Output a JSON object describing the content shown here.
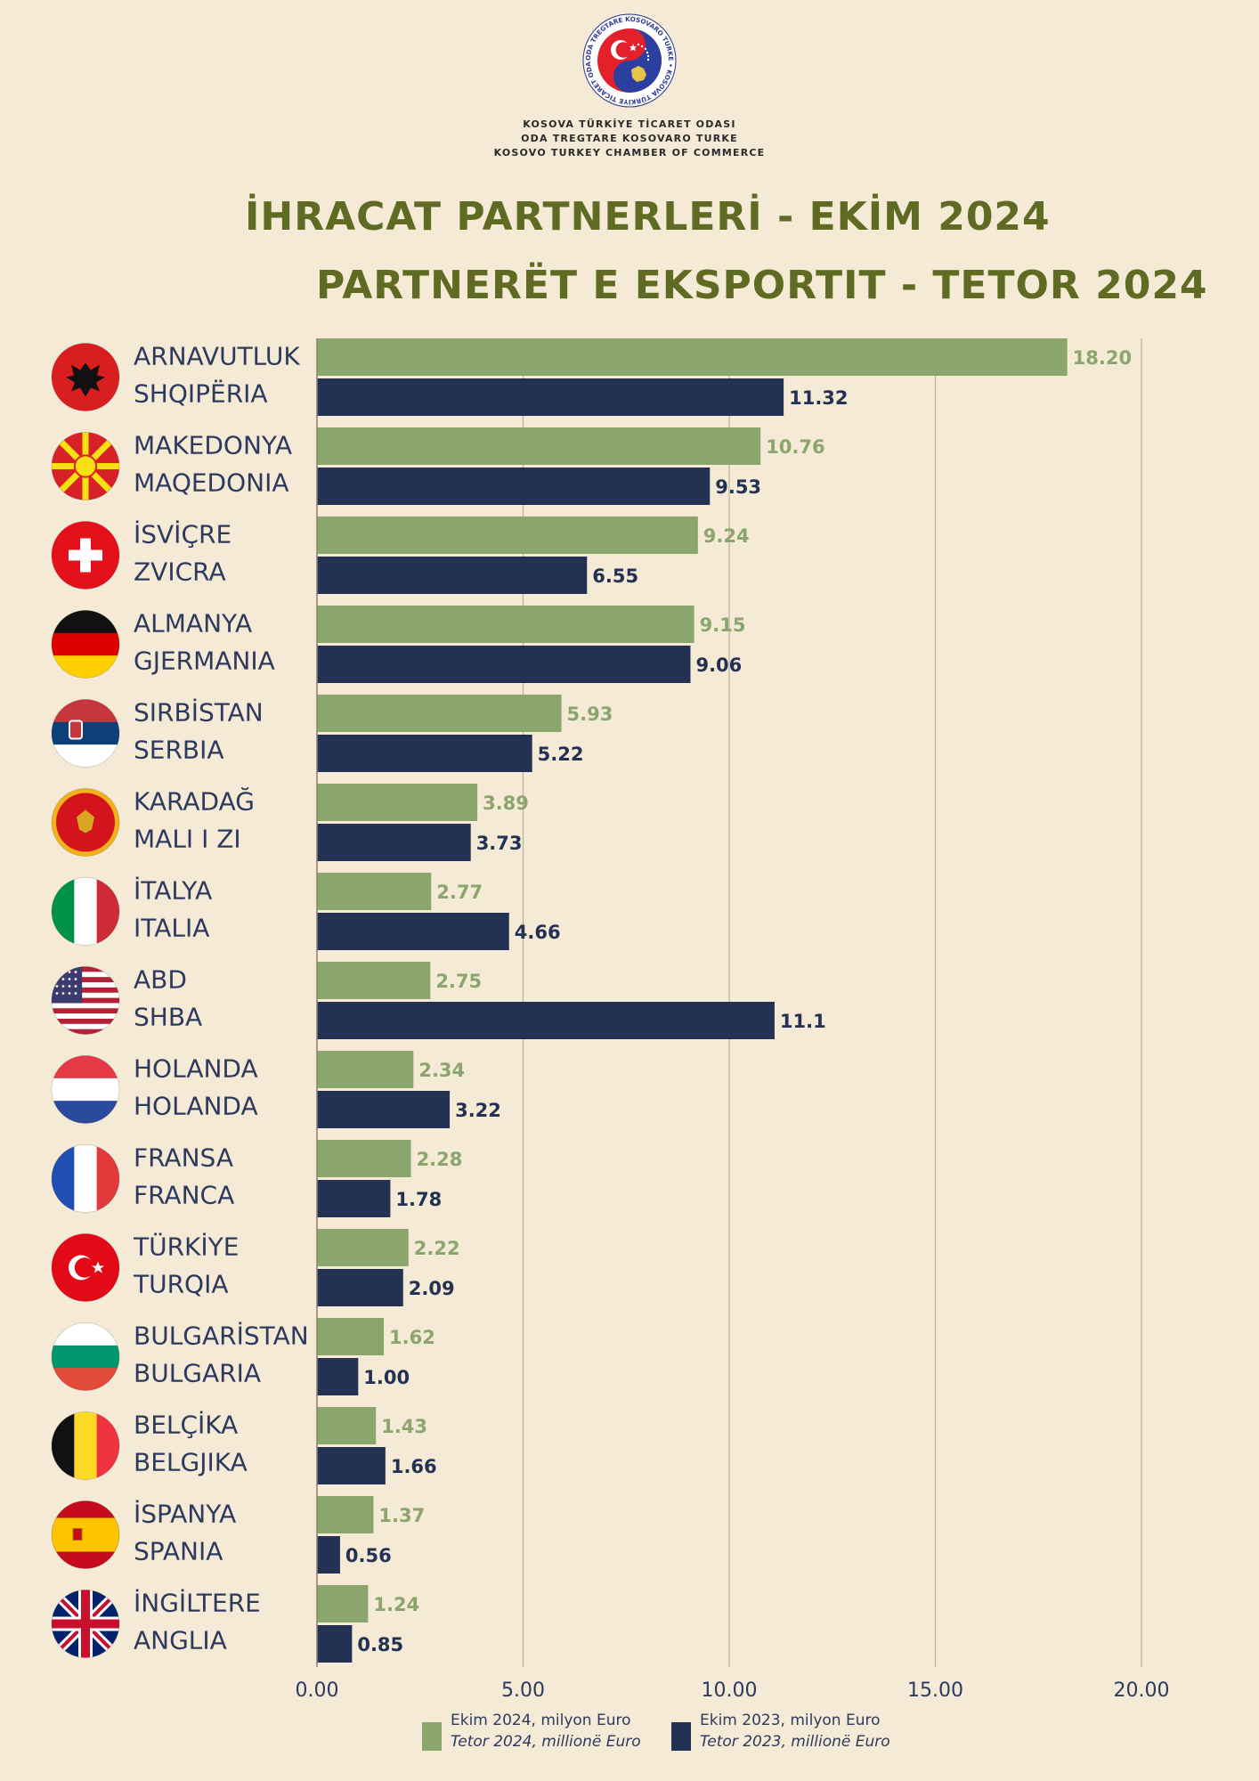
{
  "header": {
    "org_lines": [
      "KOSOVA TÜRKİYE TİCARET ODASI",
      "ODA TREGTARE KOSOVARO TURKE",
      "KOSOVO TURKEY CHAMBER OF COMMERCE"
    ],
    "logo_ring_text": "ODA TREGTARE KOSOVARO TURKE • KOSOVA TÜRKİYE TİCARET ODASI",
    "title_tr": "İHRACAT PARTNERLERİ - EKİM 2024",
    "title_sq": "PARTNERËT E EKSPORTIT - TETOR 2024"
  },
  "colors": {
    "background": "#f4ead6",
    "series_2024": "#8aa66c",
    "series_2023": "#233153",
    "title": "#5f6b22",
    "gridline": "#b9b09c"
  },
  "chart_data": {
    "type": "bar",
    "orientation": "horizontal",
    "categories": [
      {
        "tr": "ARNAVUTLUK",
        "sq": "SHQIPËRIA",
        "flag": "albania-flag-icon"
      },
      {
        "tr": "MAKEDONYA",
        "sq": "MAQEDONIA",
        "flag": "north-macedonia-flag-icon"
      },
      {
        "tr": "İSVİÇRE",
        "sq": "ZVICRA",
        "flag": "switzerland-flag-icon"
      },
      {
        "tr": "ALMANYA",
        "sq": "GJERMANIA",
        "flag": "germany-flag-icon"
      },
      {
        "tr": "SIRBİSTAN",
        "sq": "SERBIA",
        "flag": "serbia-flag-icon"
      },
      {
        "tr": "KARADAĞ",
        "sq": "MALI I ZI",
        "flag": "montenegro-flag-icon"
      },
      {
        "tr": "İTALYA",
        "sq": "ITALIA",
        "flag": "italy-flag-icon"
      },
      {
        "tr": "ABD",
        "sq": "SHBA",
        "flag": "usa-flag-icon"
      },
      {
        "tr": "HOLANDA",
        "sq": "HOLANDA",
        "flag": "netherlands-flag-icon"
      },
      {
        "tr": "FRANSA",
        "sq": "FRANCA",
        "flag": "france-flag-icon"
      },
      {
        "tr": "TÜRKİYE",
        "sq": "TURQIA",
        "flag": "turkey-flag-icon"
      },
      {
        "tr": "BULGARİSTAN",
        "sq": "BULGARIA",
        "flag": "bulgaria-flag-icon"
      },
      {
        "tr": "BELÇİKA",
        "sq": "BELGJIKA",
        "flag": "belgium-flag-icon"
      },
      {
        "tr": "İSPANYA",
        "sq": "SPANIA",
        "flag": "spain-flag-icon"
      },
      {
        "tr": "İNGİLTERE",
        "sq": "ANGLIA",
        "flag": "uk-flag-icon"
      }
    ],
    "series": [
      {
        "name": "Ekim 2024, milyon Euro",
        "name_sq": "Tetor 2024, millionë Euro",
        "values": [
          18.2,
          10.76,
          9.24,
          9.15,
          5.93,
          3.89,
          2.77,
          2.75,
          2.34,
          2.28,
          2.22,
          1.62,
          1.43,
          1.37,
          1.24
        ],
        "labels": [
          "18.20",
          "10.76",
          "9.24",
          "9.15",
          "5.93",
          "3.89",
          "2.77",
          "2.75",
          "2.34",
          "2.28",
          "2.22",
          "1.62",
          "1.43",
          "1.37",
          "1.24"
        ]
      },
      {
        "name": "Ekim 2023, milyon Euro",
        "name_sq": "Tetor 2023, millionë Euro",
        "values": [
          11.32,
          9.53,
          6.55,
          9.06,
          5.22,
          3.73,
          4.66,
          11.1,
          3.22,
          1.78,
          2.09,
          1.0,
          1.66,
          0.56,
          0.85
        ],
        "labels": [
          "11.32",
          "9.53",
          "6.55",
          "9.06",
          "5.22",
          "3.73",
          "4.66",
          "11.1",
          "3.22",
          "1.78",
          "2.09",
          "1.00",
          "1.66",
          "0.56",
          "0.85"
        ]
      }
    ],
    "xlim": [
      0,
      20
    ],
    "xticks": [
      "0.00",
      "5.00",
      "10.00",
      "15.00",
      "20.00"
    ],
    "grid": "vertical",
    "legend_position": "bottom"
  }
}
